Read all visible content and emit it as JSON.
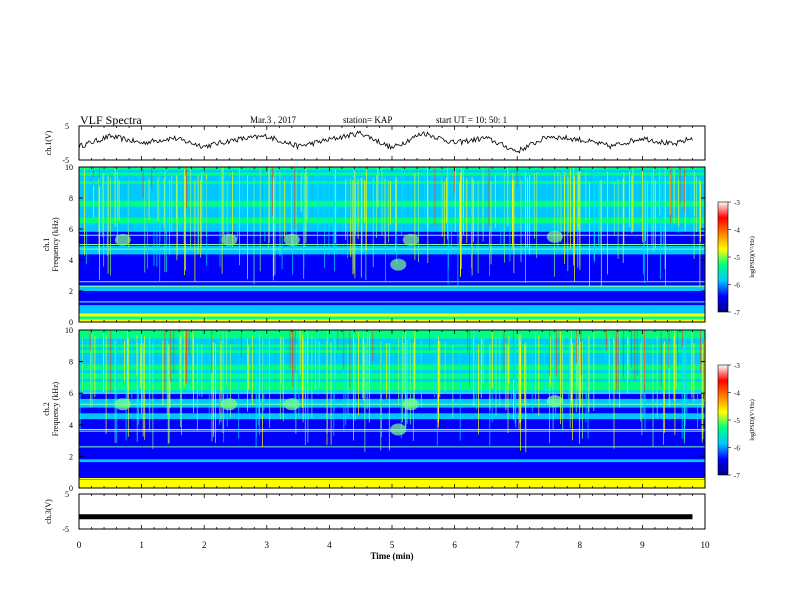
{
  "header": {
    "title": "VLF Spectra",
    "date": "Mar.3  , 2017",
    "station": "station= KAP",
    "start": "start  UT  =   10: 50: 1"
  },
  "colors": {
    "colormap": [
      "#00007f",
      "#0000ff",
      "#00c8ff",
      "#00ff80",
      "#ffff00",
      "#ff8000",
      "#ff0000",
      "#ffffff"
    ]
  },
  "chart_data": [
    {
      "type": "line",
      "ylabel": "ch.1(V)",
      "ylim": [
        -5,
        5
      ],
      "yticks": [
        "5",
        "-5"
      ],
      "x": [
        0,
        0.5,
        1,
        1.5,
        2,
        2.5,
        3,
        3.5,
        4,
        4.5,
        5,
        5.5,
        6,
        6.5,
        7,
        7.5,
        8,
        8.5,
        9,
        9.5,
        9.8
      ],
      "values": [
        -1,
        2,
        0,
        1.5,
        -1,
        1,
        2,
        -1,
        1,
        3,
        -1.5,
        3,
        0,
        1.5,
        -2.5,
        2,
        1,
        -1,
        1.5,
        -0.5,
        1.5
      ]
    },
    {
      "type": "heatmap",
      "ylabel": "ch.1\nFrequency (kHz)",
      "ylim": [
        0,
        10
      ],
      "yticks": [
        "0",
        "2",
        "4",
        "6",
        "8",
        "10"
      ],
      "colorbar": {
        "label": "log(PSD)(V²/Hz)",
        "range": [
          -7,
          -3
        ],
        "ticks": [
          "-3",
          "-4",
          "-5",
          "-6",
          "-7"
        ]
      }
    },
    {
      "type": "heatmap",
      "ylabel": "ch.2\nFrequency (kHz)",
      "ylim": [
        0,
        10
      ],
      "yticks": [
        "0",
        "2",
        "4",
        "6",
        "8",
        "10"
      ],
      "colorbar": {
        "label": "log(PSD)(V²/Hz)",
        "range": [
          -7,
          -3
        ],
        "ticks": [
          "-3",
          "-4",
          "-5",
          "-6",
          "-7"
        ]
      }
    },
    {
      "type": "line",
      "ylabel": "ch.3(V)",
      "ylim": [
        -5,
        5
      ],
      "yticks": [
        "5",
        "-5"
      ],
      "x": [
        0,
        9.8
      ],
      "values": [
        -1.5,
        -1.5
      ]
    }
  ],
  "xaxis": {
    "label": "Time  (min)",
    "ticks": [
      "0",
      "1",
      "2",
      "3",
      "4",
      "5",
      "6",
      "7",
      "8",
      "9",
      "10"
    ],
    "xlim": [
      0,
      10
    ]
  }
}
